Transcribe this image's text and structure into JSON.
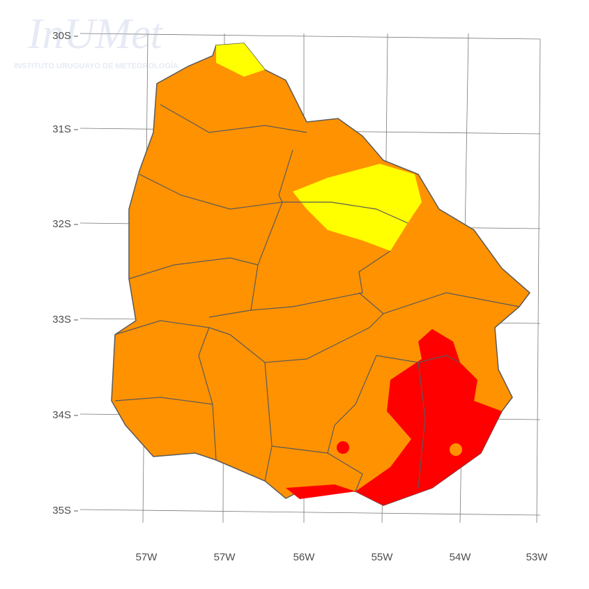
{
  "watermark": {
    "logo": "InUMet",
    "subtitle": "INSTITUTO URUGUAYO DE METEOROLOGÍA"
  },
  "map": {
    "lat_labels": [
      "30S",
      "31S",
      "32S",
      "33S",
      "34S",
      "35S"
    ],
    "lon_labels": [
      "57W",
      "57W",
      "56W",
      "55W",
      "54W",
      "53W"
    ]
  }
}
